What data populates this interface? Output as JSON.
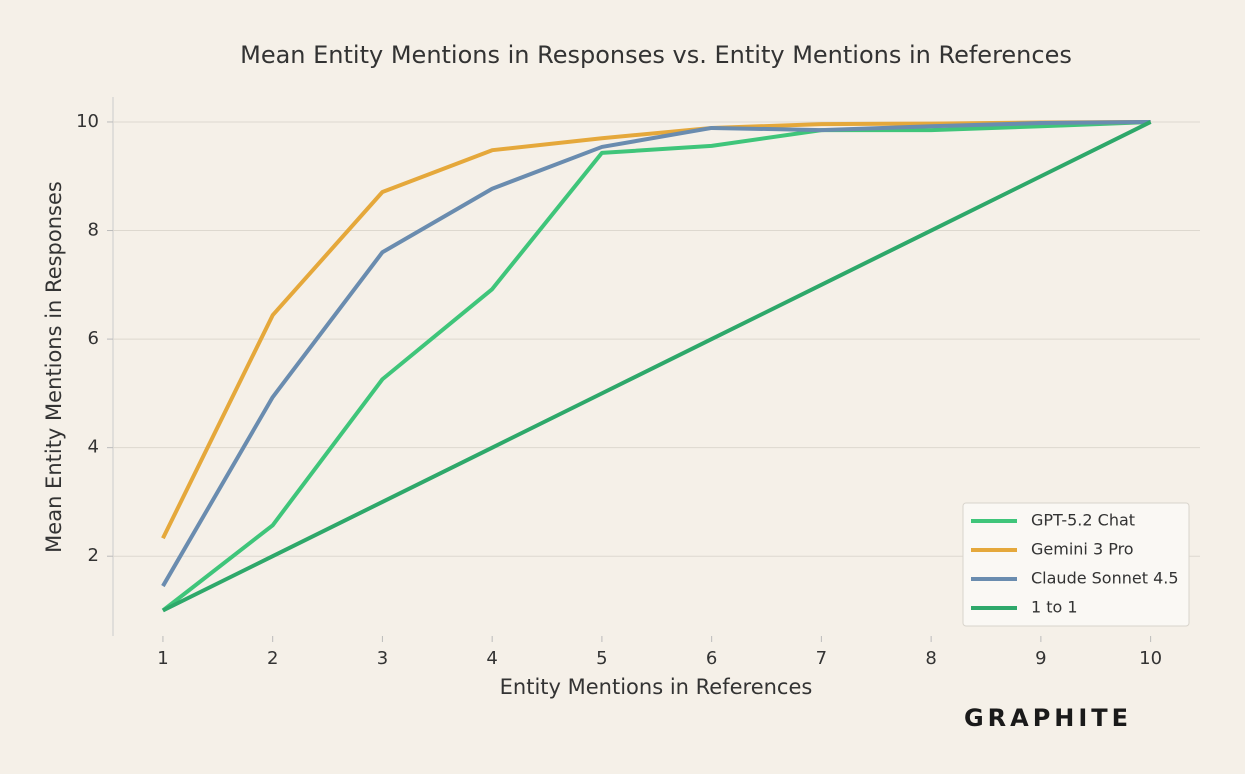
{
  "chart_data": {
    "type": "line",
    "title": "Mean Entity Mentions in Responses vs. Entity Mentions in References",
    "x_label": "Entity Mentions in References",
    "y_label": "Mean Entity Mentions in Responses",
    "watermark": "GRAPHITE",
    "x": [
      1,
      2,
      3,
      4,
      5,
      6,
      7,
      8,
      9,
      10
    ],
    "series": [
      {
        "name": "GPT-5.2 Chat",
        "color": "#3fc57a",
        "values": [
          1.0,
          2.57,
          5.26,
          6.92,
          9.43,
          9.56,
          9.85,
          9.85,
          9.92,
          10.0
        ]
      },
      {
        "name": "Gemini 3 Pro",
        "color": "#e5a83b",
        "values": [
          2.33,
          6.44,
          8.71,
          9.48,
          9.7,
          9.89,
          9.96,
          9.97,
          9.99,
          10.0
        ]
      },
      {
        "name": "Claude Sonnet 4.5",
        "color": "#6a8caf",
        "values": [
          1.45,
          4.93,
          7.6,
          8.77,
          9.54,
          9.89,
          9.85,
          9.92,
          9.98,
          10.0
        ]
      },
      {
        "name": "1 to 1",
        "color": "#2ea86a",
        "values": [
          1,
          2,
          3,
          4,
          5,
          6,
          7,
          8,
          9,
          10
        ]
      }
    ],
    "xlim": [
      0.545,
      10.45
    ],
    "xticks": [
      1,
      2,
      3,
      4,
      5,
      6,
      7,
      8,
      9,
      10
    ],
    "ylim": [
      0.53,
      10.46
    ],
    "yticks": [
      2,
      4,
      6,
      8,
      10
    ],
    "grid": true,
    "legend": "lower right"
  }
}
